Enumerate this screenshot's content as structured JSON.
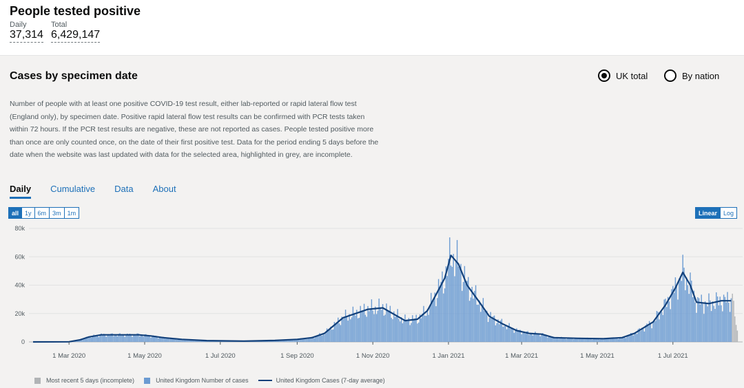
{
  "header": {
    "title": "People tested positive",
    "daily_label": "Daily",
    "daily_value": "37,314",
    "total_label": "Total",
    "total_value": "6,429,147"
  },
  "card": {
    "title": "Cases by specimen date",
    "radio_uk": "UK total",
    "radio_nation": "By nation",
    "description": "Number of people with at least one positive COVID-19 test result, either lab-reported or rapid lateral flow test (England only), by specimen date. Positive rapid lateral flow test results can be confirmed with PCR tests taken within 72 hours. If the PCR test results are negative, these are not reported as cases. People tested positive more than once are only counted once, on the date of their first positive test. Data for the period ending 5 days before the date when the website was last updated with data for the selected area, highlighted in grey, are incomplete.",
    "tabs": [
      "Daily",
      "Cumulative",
      "Data",
      "About"
    ],
    "range_buttons": [
      "all",
      "1y",
      "6m",
      "3m",
      "1m"
    ],
    "scale_buttons": [
      "Linear",
      "Log"
    ]
  },
  "colors": {
    "bars": "#6b9bd2",
    "incomplete": "#b1b4b6",
    "line": "#12407a",
    "accent": "#1d70b8"
  },
  "chart_data": {
    "type": "bar",
    "title": "Cases by specimen date",
    "ylim": [
      0,
      80000
    ],
    "y_ticks": [
      0,
      20000,
      40000,
      60000,
      80000
    ],
    "y_tick_labels": [
      "0",
      "20k",
      "40k",
      "60k",
      "80k"
    ],
    "x_tick_labels": [
      "1 Mar 2020",
      "1 May 2020",
      "1 Jul 2020",
      "1 Sep 2020",
      "1 Nov 2020",
      "1 Jan 2021",
      "1 Mar 2021",
      "1 May 2021",
      "1 Jul 2021"
    ],
    "x_tick_days": [
      29,
      90,
      151,
      213,
      274,
      335,
      394,
      455,
      516
    ],
    "series": [
      {
        "name": "United Kingdom Number of cases",
        "kind": "bars",
        "anchors_day_value": [
          [
            0,
            0
          ],
          [
            29,
            100
          ],
          [
            38,
            1500
          ],
          [
            45,
            3500
          ],
          [
            55,
            5000
          ],
          [
            70,
            5000
          ],
          [
            85,
            5000
          ],
          [
            95,
            4200
          ],
          [
            105,
            3000
          ],
          [
            120,
            1800
          ],
          [
            140,
            900
          ],
          [
            170,
            600
          ],
          [
            195,
            1000
          ],
          [
            213,
            1800
          ],
          [
            225,
            3000
          ],
          [
            235,
            6000
          ],
          [
            250,
            17000
          ],
          [
            260,
            20000
          ],
          [
            270,
            23000
          ],
          [
            282,
            24000
          ],
          [
            292,
            19000
          ],
          [
            300,
            15000
          ],
          [
            310,
            16000
          ],
          [
            318,
            22000
          ],
          [
            326,
            35000
          ],
          [
            332,
            45000
          ],
          [
            337,
            61000
          ],
          [
            343,
            55000
          ],
          [
            350,
            40000
          ],
          [
            360,
            28000
          ],
          [
            368,
            18000
          ],
          [
            378,
            13000
          ],
          [
            390,
            8000
          ],
          [
            400,
            6000
          ],
          [
            410,
            5500
          ],
          [
            420,
            3000
          ],
          [
            440,
            2500
          ],
          [
            460,
            2300
          ],
          [
            475,
            3000
          ],
          [
            485,
            6000
          ],
          [
            500,
            14000
          ],
          [
            510,
            26000
          ],
          [
            518,
            38000
          ],
          [
            524,
            49000
          ],
          [
            530,
            40000
          ],
          [
            535,
            28000
          ],
          [
            545,
            27000
          ],
          [
            555,
            29000
          ],
          [
            563,
            29000
          ]
        ]
      },
      {
        "name": "Most recent 5 days (incomplete)",
        "kind": "incomplete",
        "days": [
          564,
          565,
          566,
          567,
          568
        ],
        "values": [
          34000,
          29000,
          18000,
          12000,
          8000
        ]
      },
      {
        "name": "United Kingdom Cases (7-day average)",
        "kind": "line",
        "anchors_day_value": [
          [
            0,
            0
          ],
          [
            29,
            100
          ],
          [
            38,
            1500
          ],
          [
            45,
            3500
          ],
          [
            55,
            5000
          ],
          [
            70,
            5000
          ],
          [
            85,
            5000
          ],
          [
            95,
            4200
          ],
          [
            105,
            3000
          ],
          [
            120,
            1800
          ],
          [
            140,
            900
          ],
          [
            170,
            600
          ],
          [
            195,
            1000
          ],
          [
            213,
            1800
          ],
          [
            225,
            3000
          ],
          [
            235,
            6000
          ],
          [
            250,
            17000
          ],
          [
            260,
            20000
          ],
          [
            270,
            23000
          ],
          [
            282,
            24000
          ],
          [
            292,
            19000
          ],
          [
            300,
            15000
          ],
          [
            310,
            16000
          ],
          [
            318,
            22000
          ],
          [
            326,
            35000
          ],
          [
            332,
            45000
          ],
          [
            337,
            61000
          ],
          [
            343,
            55000
          ],
          [
            350,
            40000
          ],
          [
            360,
            28000
          ],
          [
            368,
            18000
          ],
          [
            378,
            13000
          ],
          [
            390,
            8000
          ],
          [
            400,
            6000
          ],
          [
            410,
            5500
          ],
          [
            420,
            3000
          ],
          [
            440,
            2500
          ],
          [
            460,
            2300
          ],
          [
            475,
            3000
          ],
          [
            485,
            6000
          ],
          [
            500,
            14000
          ],
          [
            510,
            26000
          ],
          [
            518,
            38000
          ],
          [
            524,
            49000
          ],
          [
            530,
            40000
          ],
          [
            535,
            28000
          ],
          [
            545,
            27000
          ],
          [
            555,
            29000
          ],
          [
            563,
            29000
          ]
        ]
      }
    ],
    "legend": [
      "Most recent 5 days (incomplete)",
      "United Kingdom Number of cases",
      "United Kingdom Cases (7-day average)"
    ]
  }
}
